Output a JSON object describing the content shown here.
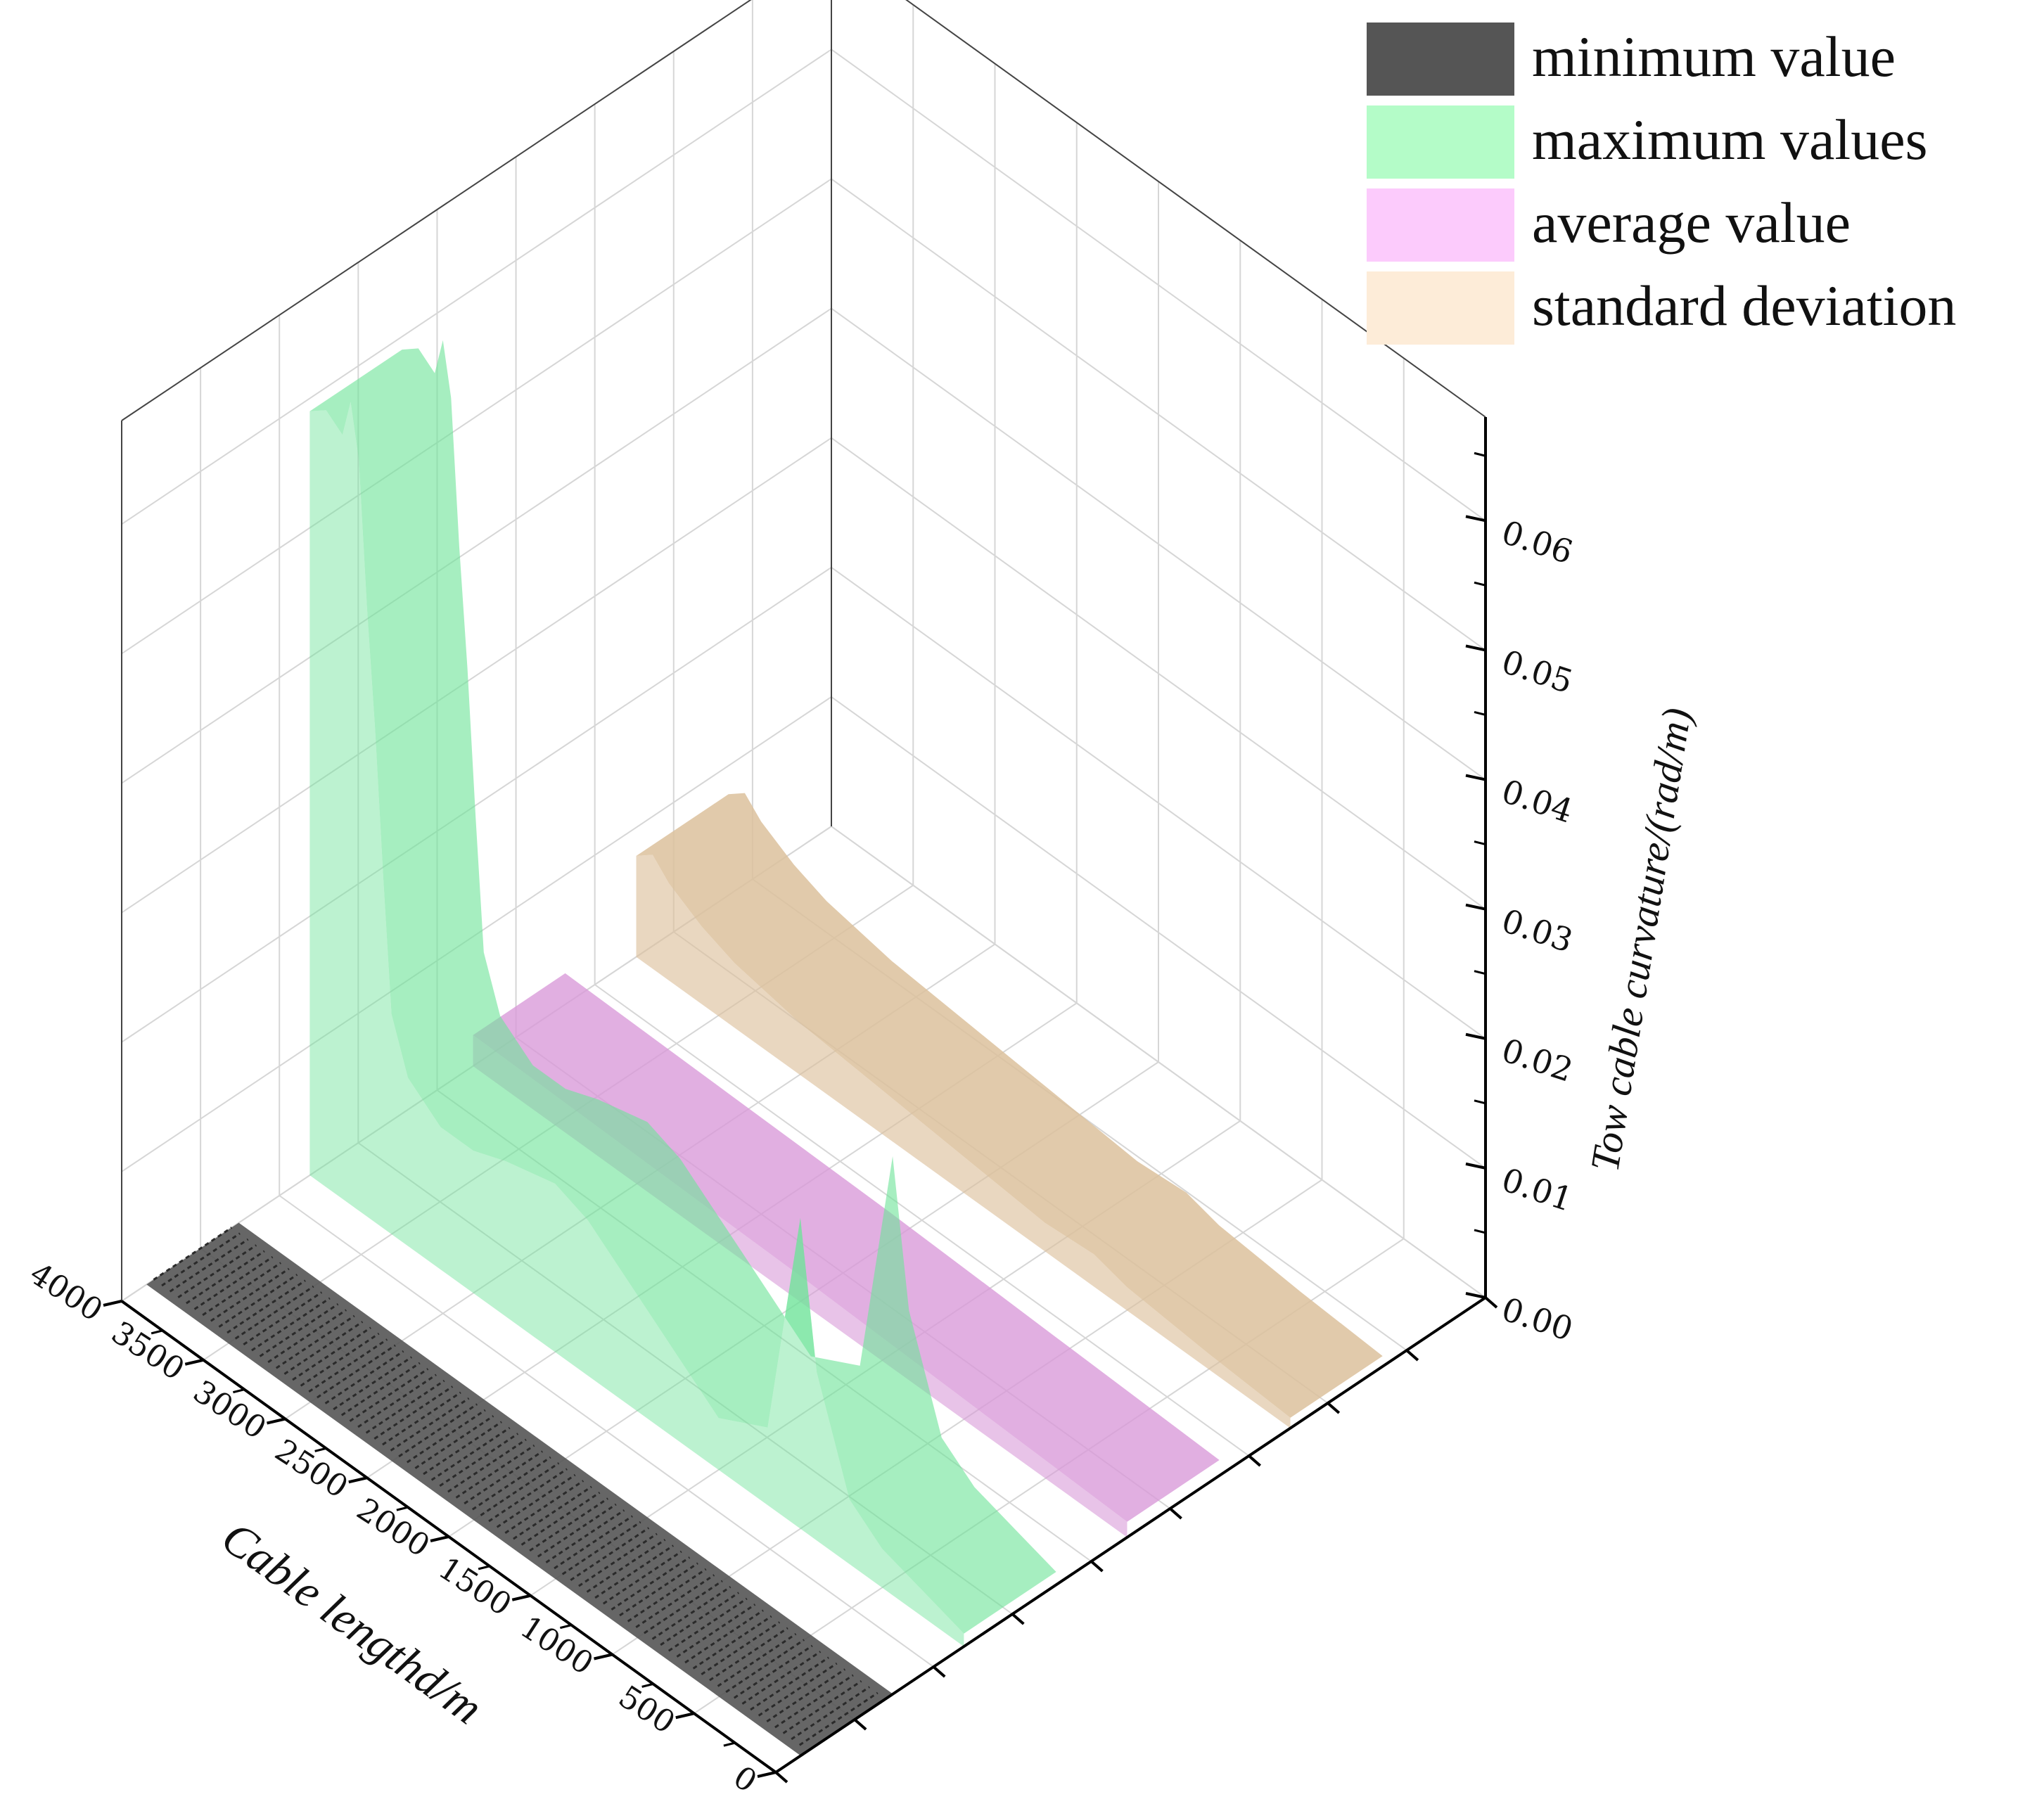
{
  "chart_data": {
    "type": "area",
    "view": "3d-waterfall",
    "title": "",
    "x_label": "Cable lengthd/m",
    "x_ticks": [
      "0",
      "500",
      "1000",
      "1500",
      "2000",
      "2500",
      "3000",
      "3500",
      "4000"
    ],
    "x_range": [
      0,
      4000
    ],
    "y_label": "Tow cable curvature/(rad/m)",
    "y_ticks": [
      "0.00",
      "0.01",
      "0.02",
      "0.03",
      "0.04",
      "0.05",
      "0.06"
    ],
    "y_range": [
      0,
      0.068
    ],
    "grid": true,
    "legend_position": "top-right",
    "series": [
      {
        "name": "minimum value",
        "color": "#555555",
        "x": [
          0,
          500,
          1000,
          1500,
          2000,
          2500,
          3000,
          3500,
          4000
        ],
        "values": [
          0,
          0,
          0,
          0,
          0,
          0,
          0,
          0,
          0
        ]
      },
      {
        "name": "maximum values",
        "color": "#6fe39a",
        "x": [
          0,
          250,
          500,
          700,
          900,
          1000,
          1200,
          1500,
          1700,
          2000,
          2300,
          2500,
          2800,
          3000,
          3200,
          3400,
          3500,
          3550,
          3600,
          3650,
          3700,
          3750,
          3800,
          3900,
          4000
        ],
        "values": [
          0.001,
          0.002,
          0.003,
          0.005,
          0.013,
          0.024,
          0.006,
          0.004,
          0.006,
          0.009,
          0.012,
          0.013,
          0.012,
          0.011,
          0.011,
          0.013,
          0.017,
          0.027,
          0.038,
          0.047,
          0.058,
          0.062,
          0.059,
          0.06,
          0.059
        ]
      },
      {
        "name": "average value",
        "color": "#d898d8",
        "x": [
          0,
          500,
          1000,
          1500,
          2000,
          2500,
          3000,
          3500,
          4000
        ],
        "values": [
          0.0012,
          0.0014,
          0.0016,
          0.0018,
          0.002,
          0.0021,
          0.0022,
          0.0023,
          0.0024
        ]
      },
      {
        "name": "standard deviation",
        "color": "#dcc19c",
        "x": [
          0,
          500,
          1000,
          1200,
          1500,
          2000,
          2500,
          3000,
          3400,
          3600,
          3800,
          3900,
          4000
        ],
        "values": [
          0.0008,
          0.0012,
          0.0018,
          0.0025,
          0.0022,
          0.0028,
          0.0034,
          0.004,
          0.005,
          0.006,
          0.0075,
          0.0088,
          0.0078
        ]
      }
    ]
  }
}
